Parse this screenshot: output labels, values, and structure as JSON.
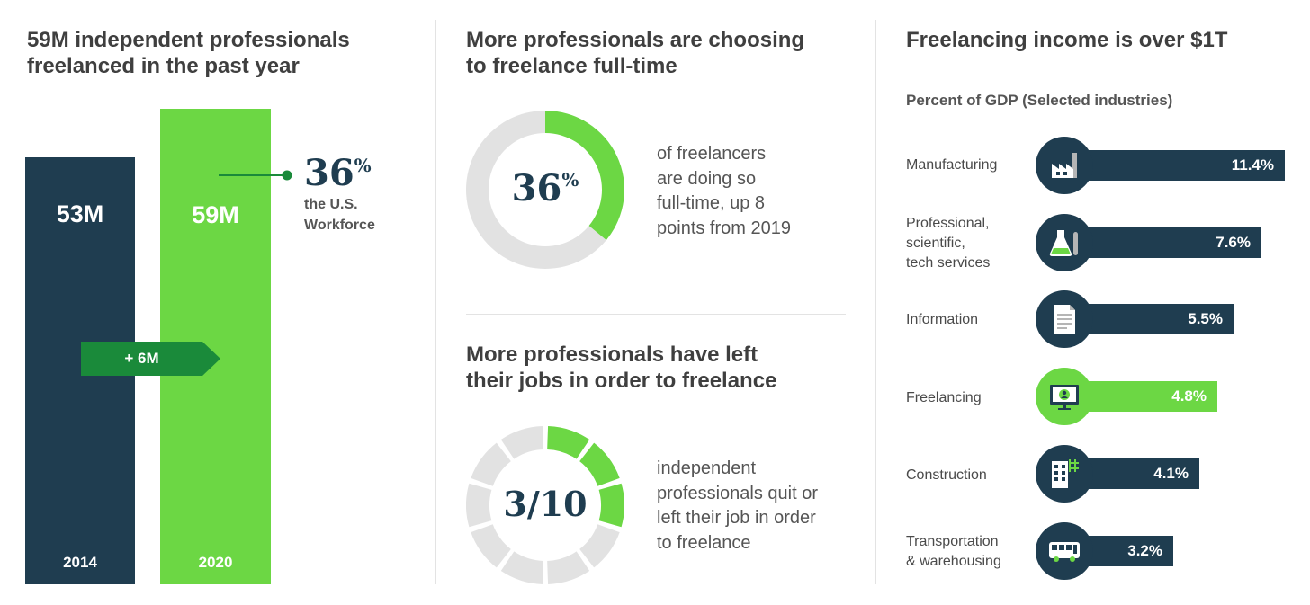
{
  "panel1": {
    "title_line1": "59M independent professionals",
    "title_line2": "freelanced in the past year",
    "callout_pct": "36",
    "callout_pct_sign": "%",
    "callout_line1": "the U.S.",
    "callout_line2": "Workforce",
    "increase_label": "+ 6M"
  },
  "panel2": {
    "title1_line1": "More professionals are choosing",
    "title1_line2": "to freelance full-time",
    "donut_value": "36",
    "donut_sign": "%",
    "donut_text": [
      "of freelancers",
      "are doing so",
      "full-time, up 8",
      "points from 2019"
    ],
    "title2_line1": "More professionals have left",
    "title2_line2": "their jobs in order to freelance",
    "segment_value": "3/10",
    "segment_text": [
      "independent",
      "professionals quit or",
      "left their job in order",
      "to freelance"
    ]
  },
  "panel3": {
    "title": "Freelancing income is over $1T",
    "subtitle": "Percent of GDP (Selected industries)"
  },
  "colors": {
    "navy": "#1f3d50",
    "green": "#6cd744",
    "dark_green": "#1a8a3a",
    "gray": "#e2e2e2"
  },
  "chart_data": [
    {
      "type": "bar",
      "categories": [
        "2014",
        "2020"
      ],
      "values": [
        53,
        59
      ],
      "value_labels": [
        "53M",
        "59M"
      ],
      "colors": [
        "#1f3d50",
        "#6cd744"
      ]
    },
    {
      "type": "pie",
      "variant": "donut",
      "values": [
        36,
        64
      ],
      "colors": [
        "#6cd744",
        "#e2e2e2"
      ]
    },
    {
      "type": "pie",
      "variant": "segmented-donut",
      "segments_total": 10,
      "segments_highlighted": 3,
      "colors": [
        "#6cd744",
        "#e2e2e2"
      ]
    },
    {
      "type": "bar",
      "orientation": "horizontal",
      "categories": [
        "Manufacturing",
        "Professional,\nscientific,\ntech services",
        "Information",
        "Freelancing",
        "Construction",
        "Transportation\n& warehousing"
      ],
      "values": [
        11.4,
        7.6,
        5.5,
        4.8,
        4.1,
        3.2
      ],
      "value_labels": [
        "11.4%",
        "7.6%",
        "5.5%",
        "4.8%",
        "4.1%",
        "3.2%"
      ],
      "icons": [
        "factory-icon",
        "lab-flask-icon",
        "document-icon",
        "monitor-person-icon",
        "building-crane-icon",
        "bus-icon"
      ],
      "highlighted": "Freelancing"
    }
  ]
}
